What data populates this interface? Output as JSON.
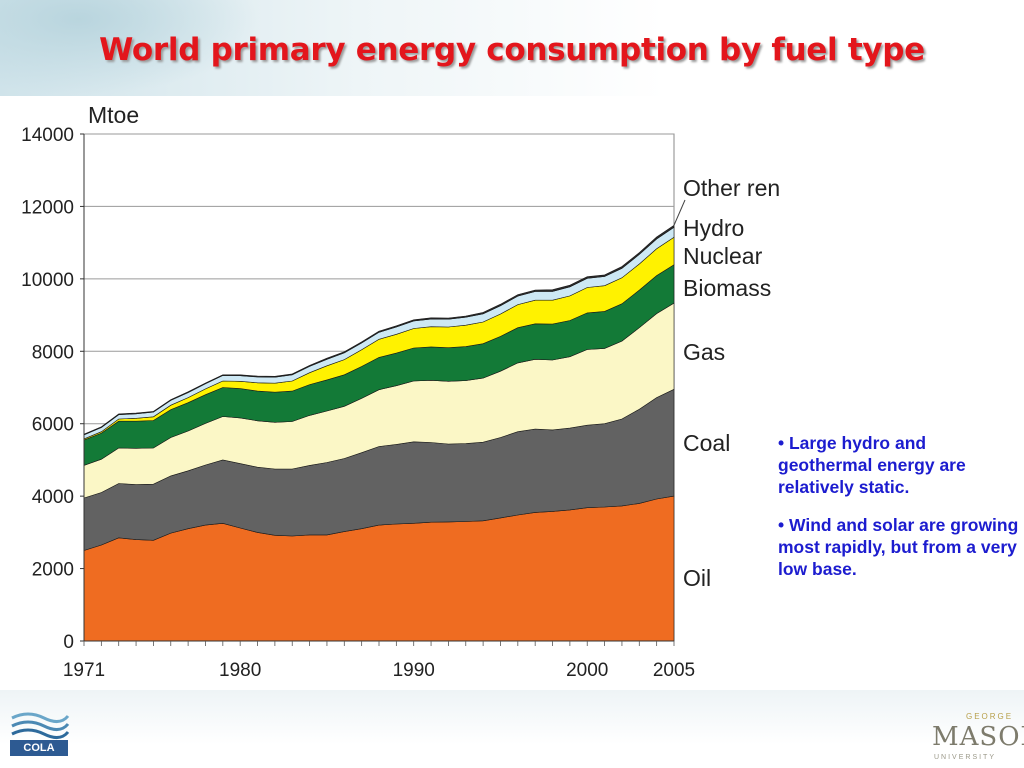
{
  "slide": {
    "title": "World primary energy consumption by fuel type",
    "notes": [
      "• Large hydro and geothermal energy are relatively static.",
      "• Wind and solar are growing most rapidly, but from a very low base."
    ]
  },
  "logos": {
    "left_text": "COLA",
    "right_name": "MASON",
    "right_top": "GEORGE",
    "right_sub": "UNIVERSITY"
  },
  "chart_data": {
    "type": "area",
    "stacked": true,
    "title": "",
    "ylabel": "Mtoe",
    "xlabel": "",
    "ylim": [
      0,
      14000
    ],
    "xlim": [
      1971,
      2005
    ],
    "yticks": [
      0,
      2000,
      4000,
      6000,
      8000,
      10000,
      12000,
      14000
    ],
    "xticks": [
      1971,
      1980,
      1990,
      2000,
      2005
    ],
    "grid": "horizontal",
    "legend_placement": "right",
    "x": [
      1971,
      1972,
      1973,
      1974,
      1975,
      1976,
      1977,
      1978,
      1979,
      1980,
      1981,
      1982,
      1983,
      1984,
      1985,
      1986,
      1987,
      1988,
      1989,
      1990,
      1991,
      1992,
      1993,
      1994,
      1995,
      1996,
      1997,
      1998,
      1999,
      2000,
      2001,
      2002,
      2003,
      2004,
      2005
    ],
    "series": [
      {
        "name": "Oil",
        "color": "#ef6c21",
        "values": [
          2500,
          2650,
          2850,
          2800,
          2780,
          2980,
          3100,
          3200,
          3250,
          3120,
          3000,
          2920,
          2900,
          2930,
          2930,
          3020,
          3100,
          3200,
          3230,
          3250,
          3280,
          3290,
          3300,
          3320,
          3400,
          3480,
          3550,
          3580,
          3620,
          3680,
          3700,
          3730,
          3800,
          3920,
          4000
        ]
      },
      {
        "name": "Coal",
        "color": "#626262",
        "values": [
          1450,
          1450,
          1500,
          1520,
          1550,
          1580,
          1600,
          1660,
          1750,
          1780,
          1800,
          1830,
          1850,
          1920,
          2000,
          2020,
          2100,
          2170,
          2200,
          2250,
          2200,
          2150,
          2150,
          2170,
          2220,
          2300,
          2300,
          2250,
          2260,
          2280,
          2300,
          2400,
          2600,
          2800,
          2950
        ]
      },
      {
        "name": "Gas",
        "color": "#fbf7c6",
        "values": [
          900,
          920,
          980,
          1000,
          1000,
          1060,
          1100,
          1150,
          1200,
          1260,
          1280,
          1290,
          1310,
          1380,
          1420,
          1440,
          1500,
          1570,
          1620,
          1680,
          1720,
          1730,
          1740,
          1770,
          1830,
          1900,
          1930,
          1930,
          1970,
          2090,
          2080,
          2150,
          2250,
          2320,
          2380
        ]
      },
      {
        "name": "Biomass",
        "color": "#137a37",
        "values": [
          700,
          720,
          740,
          750,
          760,
          770,
          780,
          790,
          800,
          810,
          820,
          830,
          840,
          850,
          860,
          870,
          880,
          890,
          900,
          910,
          920,
          930,
          940,
          950,
          960,
          970,
          980,
          990,
          1000,
          1010,
          1020,
          1030,
          1040,
          1050,
          1060
        ]
      },
      {
        "name": "Nuclear",
        "color": "#fff200",
        "values": [
          30,
          40,
          60,
          80,
          100,
          120,
          140,
          160,
          180,
          200,
          230,
          250,
          280,
          330,
          390,
          420,
          460,
          500,
          520,
          540,
          560,
          570,
          590,
          600,
          620,
          640,
          650,
          660,
          680,
          700,
          710,
          720,
          720,
          740,
          760
        ]
      },
      {
        "name": "Hydro",
        "color": "#cde8f4",
        "values": [
          110,
          115,
          120,
          125,
          130,
          135,
          140,
          145,
          150,
          155,
          160,
          165,
          170,
          175,
          180,
          185,
          190,
          195,
          200,
          205,
          210,
          215,
          220,
          225,
          230,
          235,
          240,
          245,
          250,
          255,
          255,
          260,
          265,
          270,
          275
        ]
      },
      {
        "name": "Other renewables",
        "color": "#2c2c2c",
        "values": [
          20,
          20,
          20,
          20,
          20,
          20,
          20,
          20,
          20,
          25,
          25,
          25,
          25,
          25,
          30,
          30,
          30,
          30,
          35,
          35,
          35,
          35,
          35,
          40,
          40,
          40,
          40,
          45,
          45,
          45,
          45,
          50,
          50,
          55,
          55
        ]
      }
    ]
  }
}
